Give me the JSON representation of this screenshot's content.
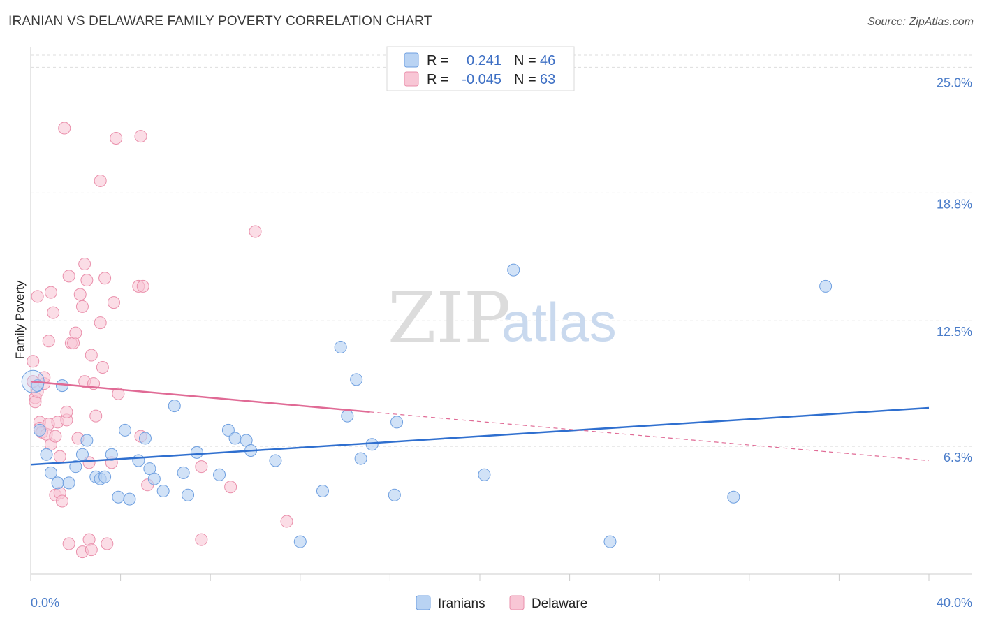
{
  "header": {
    "title": "IRANIAN VS DELAWARE FAMILY POVERTY CORRELATION CHART",
    "source": "Source: ZipAtlas.com"
  },
  "watermark": {
    "zip": "ZIP",
    "atlas": "atlas"
  },
  "colors": {
    "iranian_fill": "#b9d3f3",
    "iranian_stroke": "#6e9fe0",
    "iranian_line": "#2f6fcf",
    "delaware_fill": "#f8c6d5",
    "delaware_stroke": "#ea8fab",
    "delaware_line": "#e06a95",
    "grid": "#dddddd",
    "tick_text": "#4a7cc9"
  },
  "legend": {
    "r_label": "R =",
    "n_label": "N =",
    "iranians": {
      "r": "0.241",
      "n": "46"
    },
    "delaware": {
      "r": "-0.045",
      "n": "63"
    }
  },
  "chart_data": {
    "type": "scatter",
    "title": "IRANIAN VS DELAWARE FAMILY POVERTY CORRELATION CHART",
    "xlabel": "",
    "ylabel": "Family Poverty",
    "xlim": [
      0,
      40
    ],
    "ylim": [
      0,
      25.6
    ],
    "x_tick_labels": [
      "0.0%",
      "40.0%"
    ],
    "y_ticks": [
      6.3,
      12.5,
      18.8,
      25.0
    ],
    "y_tick_labels": [
      "6.3%",
      "12.5%",
      "18.8%",
      "25.0%"
    ],
    "grid": true,
    "legend_position": "top-center",
    "series": [
      {
        "name": "Iranians",
        "r": 0.241,
        "n": 46,
        "trend": {
          "x0": 0,
          "y0": 5.4,
          "x1": 40,
          "y1": 8.2
        },
        "points": [
          [
            0.3,
            9.3
          ],
          [
            0.4,
            7.1
          ],
          [
            0.7,
            5.9
          ],
          [
            0.9,
            5.0
          ],
          [
            1.2,
            4.5
          ],
          [
            1.4,
            9.3
          ],
          [
            1.7,
            4.5
          ],
          [
            2.0,
            5.3
          ],
          [
            2.3,
            5.9
          ],
          [
            2.5,
            6.6
          ],
          [
            2.9,
            4.8
          ],
          [
            3.1,
            4.7
          ],
          [
            3.3,
            4.8
          ],
          [
            3.6,
            5.9
          ],
          [
            3.9,
            3.8
          ],
          [
            4.2,
            7.1
          ],
          [
            4.4,
            3.7
          ],
          [
            4.8,
            5.6
          ],
          [
            5.1,
            6.7
          ],
          [
            5.3,
            5.2
          ],
          [
            5.5,
            4.7
          ],
          [
            5.9,
            4.1
          ],
          [
            6.4,
            8.3
          ],
          [
            6.8,
            5.0
          ],
          [
            7.0,
            3.9
          ],
          [
            7.4,
            6.0
          ],
          [
            8.4,
            4.9
          ],
          [
            8.8,
            7.1
          ],
          [
            9.1,
            6.7
          ],
          [
            9.6,
            6.6
          ],
          [
            9.8,
            6.1
          ],
          [
            10.9,
            5.6
          ],
          [
            13.0,
            4.1
          ],
          [
            13.8,
            11.2
          ],
          [
            14.1,
            7.8
          ],
          [
            14.7,
            5.7
          ],
          [
            15.2,
            6.4
          ],
          [
            16.2,
            3.9
          ],
          [
            16.3,
            7.5
          ],
          [
            20.2,
            4.9
          ],
          [
            21.5,
            15.0
          ],
          [
            25.8,
            1.6
          ],
          [
            31.3,
            3.8
          ],
          [
            35.4,
            14.2
          ],
          [
            14.5,
            9.6
          ],
          [
            12.0,
            1.6
          ]
        ]
      },
      {
        "name": "Delaware",
        "r": -0.045,
        "n": 63,
        "trend": {
          "x0": 0,
          "y0": 9.5,
          "x1": 15.1,
          "y1": 8.0
        },
        "trend_dashed": {
          "x0": 15.1,
          "y0": 8.0,
          "x1": 40,
          "y1": 5.6
        },
        "points": [
          [
            0.1,
            10.5
          ],
          [
            0.2,
            8.7
          ],
          [
            0.2,
            8.5
          ],
          [
            0.3,
            9.0
          ],
          [
            0.3,
            13.7
          ],
          [
            0.4,
            7.5
          ],
          [
            0.4,
            7.2
          ],
          [
            0.5,
            7.0
          ],
          [
            0.6,
            9.4
          ],
          [
            0.6,
            9.7
          ],
          [
            0.7,
            6.9
          ],
          [
            0.8,
            11.5
          ],
          [
            0.8,
            7.4
          ],
          [
            0.9,
            6.4
          ],
          [
            0.9,
            13.9
          ],
          [
            1.0,
            12.9
          ],
          [
            1.1,
            3.9
          ],
          [
            1.1,
            6.8
          ],
          [
            1.2,
            7.5
          ],
          [
            1.3,
            5.8
          ],
          [
            1.3,
            4.0
          ],
          [
            1.4,
            3.6
          ],
          [
            1.5,
            22.0
          ],
          [
            1.6,
            7.6
          ],
          [
            1.6,
            8.0
          ],
          [
            1.7,
            14.7
          ],
          [
            1.7,
            1.5
          ],
          [
            1.8,
            11.4
          ],
          [
            1.9,
            11.4
          ],
          [
            2.0,
            11.9
          ],
          [
            2.1,
            6.7
          ],
          [
            2.2,
            13.8
          ],
          [
            2.3,
            13.2
          ],
          [
            2.3,
            1.1
          ],
          [
            2.4,
            9.5
          ],
          [
            2.4,
            15.3
          ],
          [
            2.5,
            14.5
          ],
          [
            2.6,
            1.7
          ],
          [
            2.6,
            5.5
          ],
          [
            2.7,
            10.8
          ],
          [
            2.7,
            1.2
          ],
          [
            2.8,
            9.4
          ],
          [
            2.9,
            7.8
          ],
          [
            3.1,
            12.4
          ],
          [
            3.1,
            19.4
          ],
          [
            3.2,
            10.2
          ],
          [
            3.3,
            14.6
          ],
          [
            3.4,
            1.5
          ],
          [
            3.6,
            5.5
          ],
          [
            3.7,
            13.4
          ],
          [
            3.8,
            21.5
          ],
          [
            3.9,
            8.9
          ],
          [
            4.8,
            14.2
          ],
          [
            4.9,
            21.6
          ],
          [
            4.9,
            6.8
          ],
          [
            5.0,
            14.2
          ],
          [
            5.2,
            4.4
          ],
          [
            7.6,
            5.3
          ],
          [
            7.6,
            1.7
          ],
          [
            8.9,
            4.3
          ],
          [
            10.0,
            16.9
          ],
          [
            11.4,
            2.6
          ],
          [
            0.1,
            9.5
          ]
        ]
      }
    ]
  },
  "bottom_legend": {
    "iranians_label": "Iranians",
    "delaware_label": "Delaware"
  },
  "axes": {
    "ylabel": "Family Poverty"
  }
}
